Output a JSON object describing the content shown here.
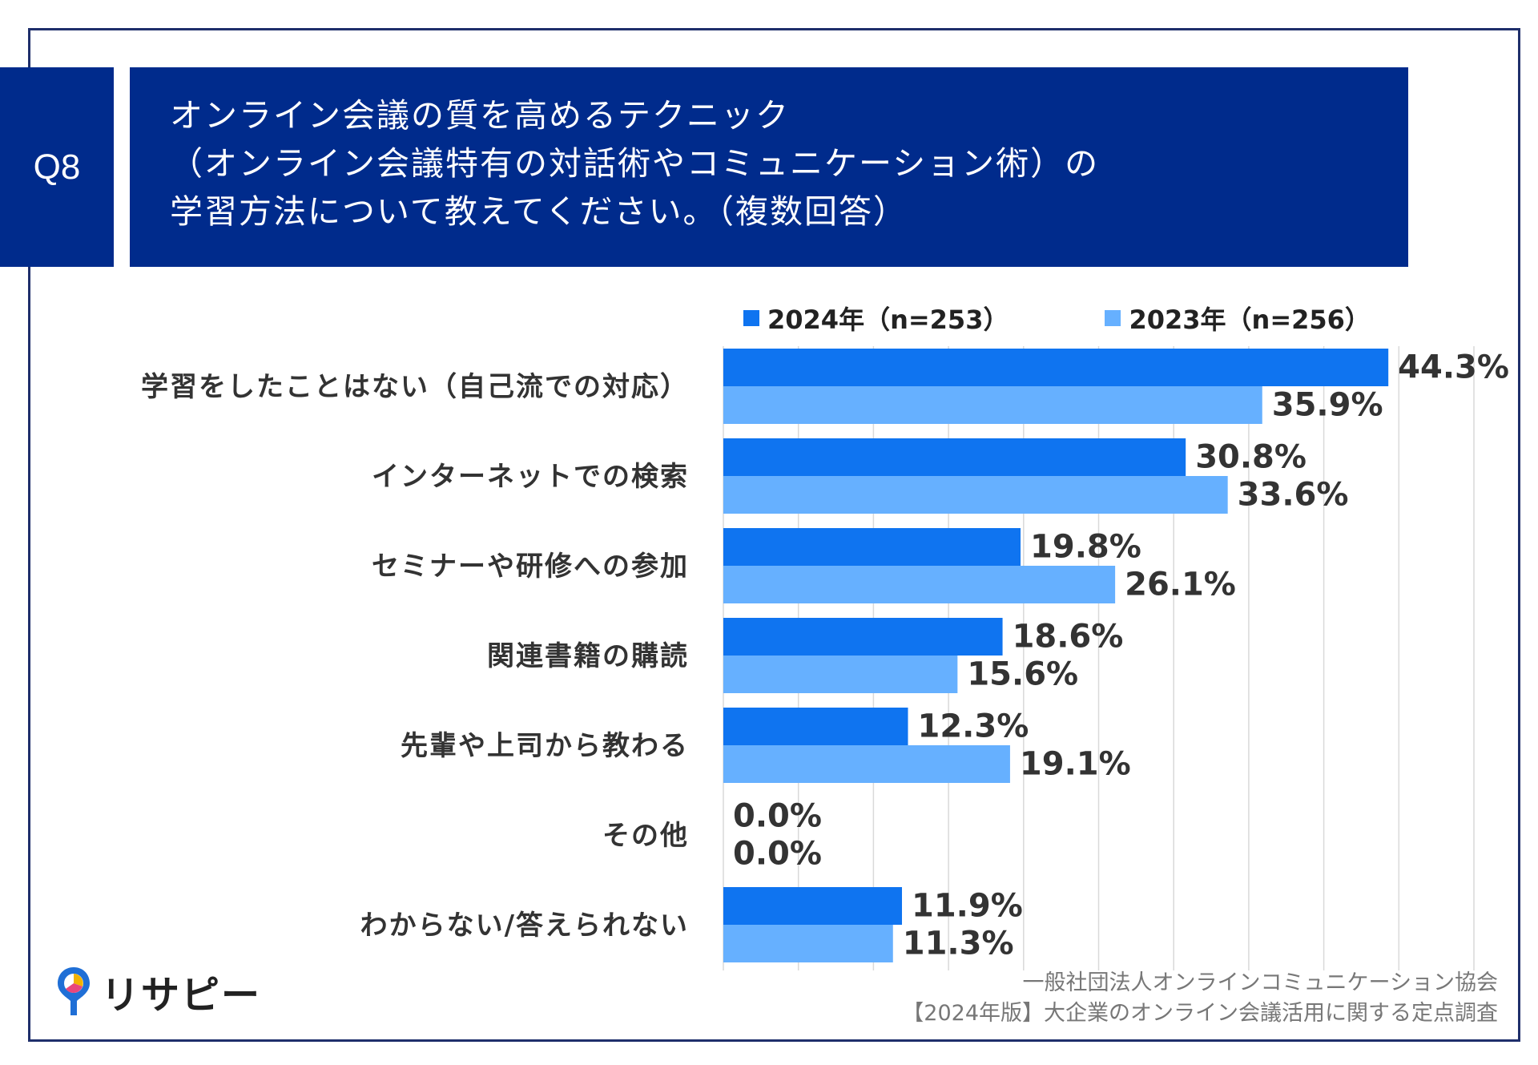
{
  "header": {
    "question_no": "Q8",
    "title_lines": [
      "オンライン会議の質を高めるテクニック",
      "（オンライン会議特有の対話術やコミュニケーション術）の",
      "学習方法について教えてください。（複数回答）"
    ]
  },
  "colors": {
    "series_2024": "#0f74f0",
    "series_2023": "#66b0ff",
    "header_bg": "#002b8c"
  },
  "chart_data": {
    "type": "bar",
    "orientation": "horizontal",
    "categories": [
      "学習をしたことはない（自己流での対応）",
      "インターネットでの検索",
      "セミナーや研修への参加",
      "関連書籍の購読",
      "先輩や上司から教わる",
      "その他",
      "わからない/答えられない"
    ],
    "series": [
      {
        "name": "2024年（n=253）",
        "values": [
          44.3,
          30.8,
          19.8,
          18.6,
          12.3,
          0.0,
          11.9
        ]
      },
      {
        "name": "2023年（n=256）",
        "values": [
          35.9,
          33.6,
          26.1,
          15.6,
          19.1,
          0.0,
          11.3
        ]
      }
    ],
    "value_suffix": "%",
    "xlim": [
      0,
      50
    ],
    "grid": true,
    "legend_position": "top"
  },
  "footer": {
    "line1": "一般社団法人オンラインコミュニケーション協会",
    "line2": "【2024年版】大企業のオンライン会議活用に関する定点調査"
  },
  "logo": {
    "text": "リサピー",
    "icon": "pin-icon"
  }
}
